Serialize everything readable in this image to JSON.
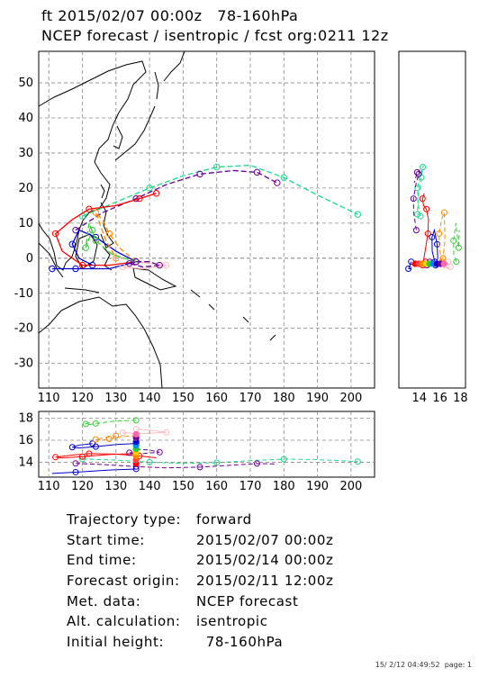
{
  "title": {
    "line1": "ft 2015/02/07 00:00z   78-160hPa",
    "line2": "NCEP forecast / isentropic / fcst org:0211 12z"
  },
  "map": {
    "lon_ticks": [
      "110",
      "120",
      "130",
      "140",
      "150",
      "160",
      "170",
      "180",
      "190",
      "200"
    ],
    "lat_ticks": [
      "50",
      "40",
      "30",
      "20",
      "10",
      "0",
      "-10",
      "-20",
      "-30"
    ],
    "side_ticks": [
      "14",
      "16",
      "18"
    ],
    "height_ticks": [
      "18",
      "16",
      "14"
    ],
    "land_color": "#000000",
    "grid_style": "dashed"
  },
  "trajectories": {
    "colors": [
      "#ff0000",
      "#0000cc",
      "#ff8800",
      "#33cc33",
      "#ffbbbb",
      "#1ad98c",
      "#660099"
    ],
    "tracks": [
      {
        "color": "#1ad98c",
        "dash": true,
        "points": [
          [
            120,
            12
          ],
          [
            130,
            16
          ],
          [
            140,
            20
          ],
          [
            150,
            23.5
          ],
          [
            160,
            26
          ],
          [
            170,
            26.5
          ],
          [
            180,
            23
          ],
          [
            190,
            18
          ],
          [
            202,
            12.5
          ]
        ]
      },
      {
        "color": "#660099",
        "dash": true,
        "points": [
          [
            118,
            8
          ],
          [
            126,
            13
          ],
          [
            136,
            17
          ],
          [
            145,
            21
          ],
          [
            155,
            24
          ],
          [
            165,
            25
          ],
          [
            172,
            24.5
          ],
          [
            178,
            21.5
          ]
        ]
      },
      {
        "color": "#ff0000",
        "dash": false,
        "points": [
          [
            136,
            -1
          ],
          [
            128,
            -2
          ],
          [
            120,
            -2
          ],
          [
            114,
            2
          ],
          [
            112,
            7
          ],
          [
            117,
            11
          ],
          [
            122,
            14
          ],
          [
            130,
            15
          ],
          [
            137,
            17
          ],
          [
            142,
            18.5
          ]
        ]
      },
      {
        "color": "#0000cc",
        "dash": false,
        "points": [
          [
            136,
            -1
          ],
          [
            128,
            -3
          ],
          [
            118,
            -3
          ],
          [
            111,
            -3
          ]
        ]
      },
      {
        "color": "#0000cc",
        "dash": false,
        "points": [
          [
            136,
            -1
          ],
          [
            130,
            2
          ],
          [
            124,
            6
          ],
          [
            119,
            8
          ],
          [
            117,
            4
          ],
          [
            119,
            0
          ],
          [
            123,
            -2
          ]
        ]
      },
      {
        "color": "#ff8800",
        "dash": true,
        "points": [
          [
            136,
            -1
          ],
          [
            131,
            3
          ],
          [
            128,
            7
          ],
          [
            126,
            11
          ],
          [
            124,
            13
          ],
          [
            127,
            5
          ],
          [
            130,
            0
          ]
        ]
      },
      {
        "color": "#33cc33",
        "dash": true,
        "points": [
          [
            136,
            -1
          ],
          [
            129,
            1
          ],
          [
            124,
            5
          ],
          [
            122,
            10
          ],
          [
            121,
            3
          ],
          [
            123,
            8
          ]
        ]
      },
      {
        "color": "#ffbbbb",
        "dash": false,
        "points": [
          [
            136,
            -1
          ],
          [
            140,
            -1.5
          ],
          [
            145,
            -2
          ],
          [
            138,
            -3
          ],
          [
            132,
            -2.5
          ]
        ]
      },
      {
        "color": "#660099",
        "dash": true,
        "points": [
          [
            136,
            -1
          ],
          [
            140,
            -1
          ],
          [
            143,
            -2
          ],
          [
            138,
            -2.5
          ],
          [
            134,
            -1.5
          ]
        ]
      }
    ]
  },
  "info": {
    "rows": [
      {
        "label": "Trajectory type:",
        "value": "forward"
      },
      {
        "label": "Start time:",
        "value": "2015/02/07 00:00z"
      },
      {
        "label": "End time:",
        "value": "2015/02/14 00:00z"
      },
      {
        "label": "Forecast origin:",
        "value": "2015/02/11 12:00z"
      },
      {
        "label": "Met. data:",
        "value": "NCEP forecast"
      },
      {
        "label": "Alt. calculation:",
        "value": "isentropic"
      },
      {
        "label": "Initial height:",
        "value": "  78-160hPa"
      }
    ]
  },
  "footer": {
    "timestamp": "15/ 2/12 04:49:52",
    "page": "page: 1"
  }
}
